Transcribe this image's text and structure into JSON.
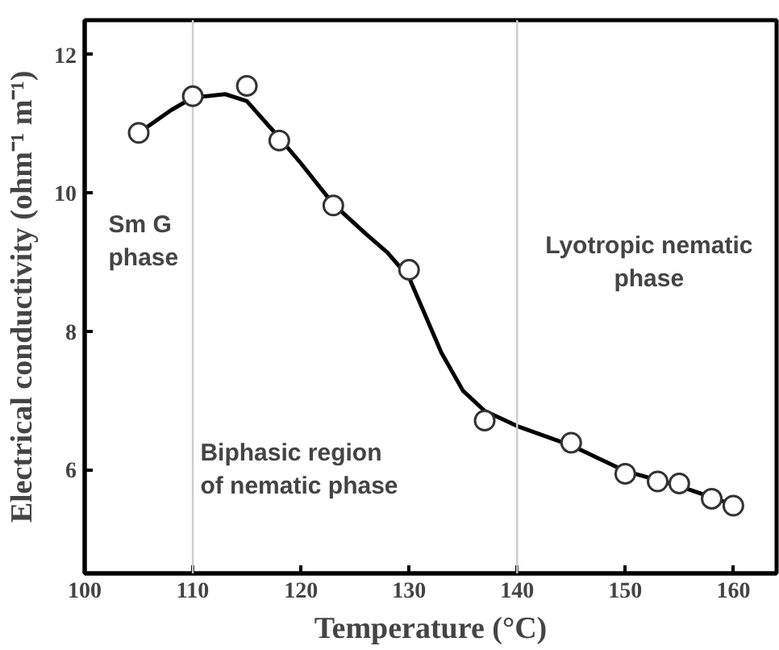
{
  "chart_data": {
    "type": "scatter",
    "xlabel": "Temperature (°C)",
    "ylabel": "Electrical conductivity (ohm⁻¹ m⁻¹)",
    "xlim": [
      100,
      164
    ],
    "ylim": [
      4.5,
      12.5
    ],
    "xticks": [
      100,
      110,
      120,
      130,
      140,
      150,
      160
    ],
    "yticks": [
      6,
      8,
      10,
      12
    ],
    "grid": false,
    "series": [
      {
        "marker": "circle",
        "color": "#333333",
        "x": [
          105,
          110,
          115,
          118,
          123,
          130,
          137,
          145,
          150,
          153,
          155,
          158,
          160
        ],
        "values": [
          10.87,
          11.4,
          11.55,
          10.76,
          9.82,
          8.89,
          6.71,
          6.39,
          5.94,
          5.83,
          5.8,
          5.58,
          5.48
        ]
      },
      {
        "type": "line",
        "marker": "none",
        "line_style": "solid",
        "color": "#000000",
        "x": [
          105,
          108,
          110,
          113,
          115,
          118,
          120,
          123,
          126,
          128,
          130,
          133,
          135,
          137,
          140,
          145,
          150,
          155,
          158,
          160
        ],
        "values": [
          10.87,
          11.2,
          11.38,
          11.43,
          11.33,
          10.8,
          10.43,
          9.84,
          9.41,
          9.14,
          8.78,
          7.69,
          7.14,
          6.85,
          6.63,
          6.35,
          5.98,
          5.76,
          5.6,
          5.49
        ]
      }
    ],
    "ref_lines": [
      {
        "axis": "x",
        "value": 110,
        "color": "#cccccc"
      },
      {
        "axis": "x",
        "value": 140,
        "color": "#cccccc"
      }
    ],
    "annotations": [
      "Sm G\nphase",
      "Biphasic region\nof nematic phase",
      "Lyotropic nematic\nphase"
    ]
  }
}
